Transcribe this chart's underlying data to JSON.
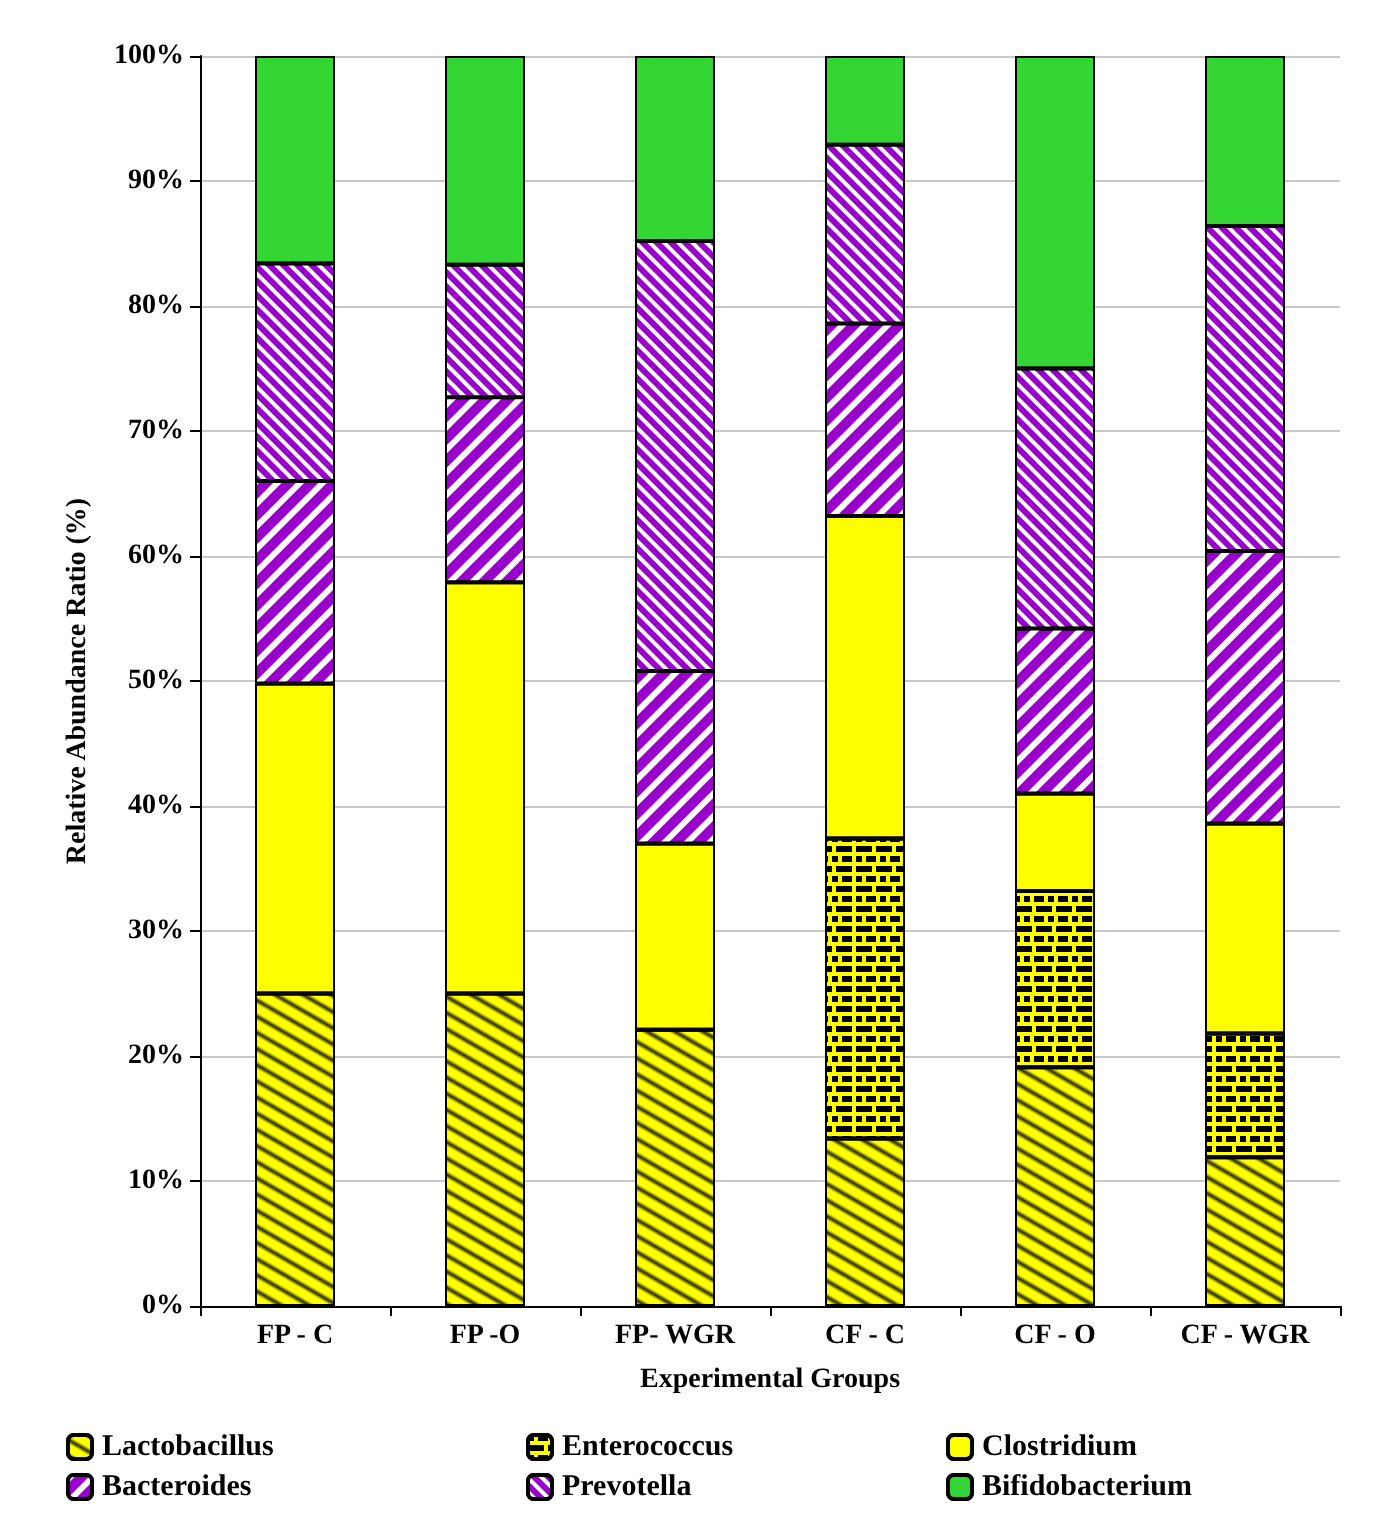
{
  "chart_data": {
    "type": "bar",
    "stacked": true,
    "xlabel": "Experimental Groups",
    "ylabel": "Relative Abundance Ratio (%)",
    "categories": [
      "FP - C",
      "FP -O",
      "FP- WGR",
      "CF - C",
      "CF - O",
      "CF - WGR"
    ],
    "series": [
      {
        "name": "Lactobacillus",
        "color": "#ffff00",
        "values": [
          25.0,
          25.0,
          22.1,
          13.4,
          19.1,
          11.9
        ]
      },
      {
        "name": "Enterococcus",
        "color": "#ffff00",
        "values": [
          null,
          null,
          null,
          24.0,
          14.1,
          9.9
        ]
      },
      {
        "name": "Clostridium",
        "color": "#ffff00",
        "values": [
          24.8,
          32.9,
          14.9,
          25.8,
          7.8,
          16.8
        ]
      },
      {
        "name": "Bacteroides",
        "color": "#9900cc",
        "values": [
          16.2,
          14.8,
          13.8,
          15.4,
          13.2,
          21.8
        ]
      },
      {
        "name": "Prevotella",
        "color": "#9900cc",
        "values": [
          17.4,
          10.6,
          34.4,
          14.3,
          20.8,
          26.0
        ]
      },
      {
        "name": "Bifidobacterium",
        "color": "#00cc00",
        "values": [
          16.6,
          16.7,
          14.8,
          7.1,
          25.0,
          13.6
        ]
      }
    ],
    "ylim": [
      0,
      100
    ],
    "yticks": [
      {
        "value": 0,
        "label": "0%"
      },
      {
        "value": 10,
        "label": "10%"
      },
      {
        "value": 20,
        "label": "20%"
      },
      {
        "value": 30,
        "label": "30%"
      },
      {
        "value": 40,
        "label": "40%"
      },
      {
        "value": 50,
        "label": "50%"
      },
      {
        "value": 60,
        "label": "60%"
      },
      {
        "value": 70,
        "label": "70%"
      },
      {
        "value": 80,
        "label": "80%"
      },
      {
        "value": 90,
        "label": "90%"
      },
      {
        "value": 100,
        "label": "100%"
      }
    ],
    "grid": "y",
    "legend": "bottom"
  }
}
